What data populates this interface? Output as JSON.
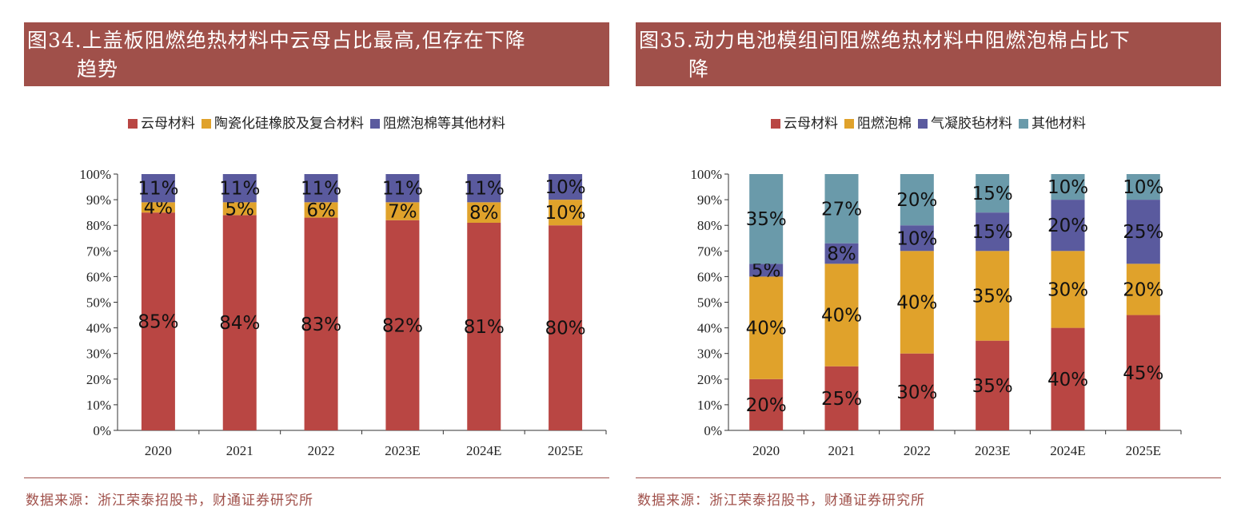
{
  "left_panel": {
    "title_line1": "图34.上盖板阻燃绝热材料中云母占比最高,但存在下降",
    "title_line2": "趋势",
    "source": "数据来源：浙江荣泰招股书，财通证券研究所"
  },
  "right_panel": {
    "title_line1": "图35.动力电池模组间阻燃绝热材料中阻燃泡棉占比下",
    "title_line2": "降",
    "source": "数据来源：浙江荣泰招股书，财通证券研究所"
  },
  "chart_data": [
    {
      "type": "bar",
      "stacked": true,
      "categories": [
        "2020",
        "2021",
        "2022",
        "2023E",
        "2024E",
        "2025E"
      ],
      "series": [
        {
          "name": "云母材料",
          "color": "#b94643",
          "values": [
            85,
            84,
            83,
            82,
            81,
            80
          ],
          "labels": [
            "85%",
            "84%",
            "83%",
            "82%",
            "81%",
            "80%"
          ]
        },
        {
          "name": "陶瓷化硅橡胶及复合材料",
          "color": "#e0a22b",
          "values": [
            4,
            5,
            6,
            7,
            8,
            10
          ],
          "labels": [
            "4%",
            "5%",
            "6%",
            "7%",
            "8%",
            "10%"
          ]
        },
        {
          "name": "阻燃泡棉等其他材料",
          "color": "#5a5a9e",
          "values": [
            11,
            11,
            11,
            11,
            11,
            10
          ],
          "labels": [
            "11%",
            "11%",
            "11%",
            "11%",
            "11%",
            "10%"
          ]
        }
      ],
      "yticks": [
        "0%",
        "10%",
        "20%",
        "30%",
        "40%",
        "50%",
        "60%",
        "70%",
        "80%",
        "90%",
        "100%"
      ],
      "ylim": [
        0,
        100
      ],
      "legend": "top-center",
      "grid": false
    },
    {
      "type": "bar",
      "stacked": true,
      "categories": [
        "2020",
        "2021",
        "2022",
        "2023E",
        "2024E",
        "2025E"
      ],
      "series": [
        {
          "name": "云母材料",
          "color": "#b94643",
          "values": [
            20,
            25,
            30,
            35,
            40,
            45
          ],
          "labels": [
            "20%",
            "25%",
            "30%",
            "35%",
            "40%",
            "45%"
          ]
        },
        {
          "name": "阻燃泡棉",
          "color": "#e0a22b",
          "values": [
            40,
            40,
            40,
            35,
            30,
            20
          ],
          "labels": [
            "40%",
            "40%",
            "40%",
            "35%",
            "30%",
            "20%"
          ]
        },
        {
          "name": "气凝胶毡材料",
          "color": "#5a5a9e",
          "values": [
            5,
            8,
            10,
            15,
            20,
            25
          ],
          "labels": [
            "5%",
            "8%",
            "10%",
            "15%",
            "20%",
            "25%"
          ]
        },
        {
          "name": "其他材料",
          "color": "#6a9aaa",
          "values": [
            35,
            27,
            20,
            15,
            10,
            10
          ],
          "labels": [
            "35%",
            "27%",
            "20%",
            "15%",
            "10%",
            "10%"
          ]
        }
      ],
      "yticks": [
        "0%",
        "10%",
        "20%",
        "30%",
        "40%",
        "50%",
        "60%",
        "70%",
        "80%",
        "90%",
        "100%"
      ],
      "ylim": [
        0,
        100
      ],
      "legend": "top-center",
      "grid": false
    }
  ]
}
